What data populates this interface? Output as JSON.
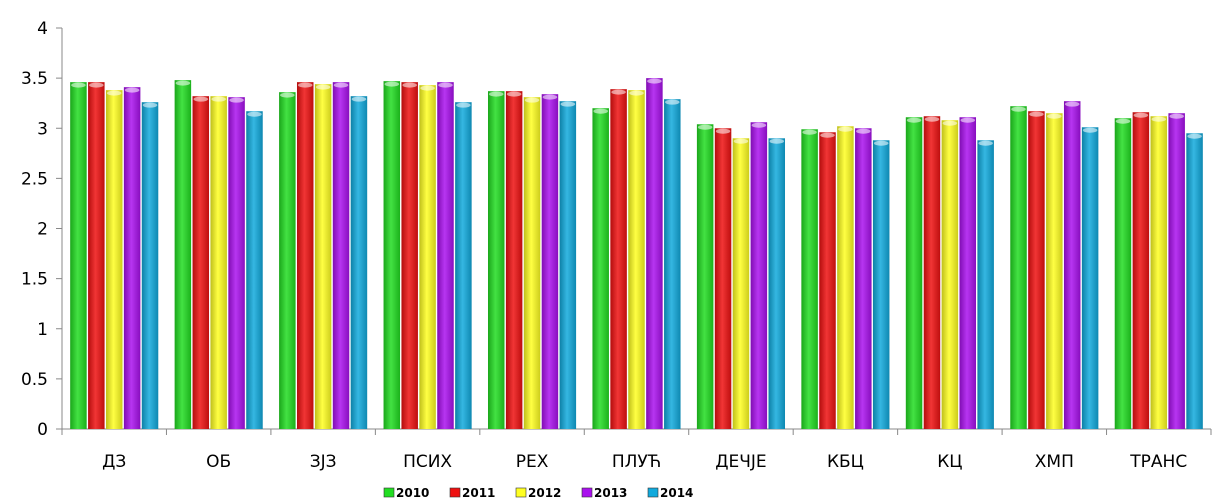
{
  "chart_data": {
    "type": "bar",
    "categories": [
      "ДЗ",
      "ОБ",
      "ЗЈЗ",
      "ПСИХ",
      "РЕХ",
      "ПЛУЋ",
      "ДЕЧЈЕ",
      "КБЦ",
      "КЦ",
      "ХМП",
      "ТРАНС"
    ],
    "series": [
      {
        "name": "2010",
        "color": "#22dd22",
        "values": [
          3.46,
          3.48,
          3.36,
          3.47,
          3.37,
          3.2,
          3.04,
          2.99,
          3.11,
          3.22,
          3.1
        ]
      },
      {
        "name": "2011",
        "color": "#ee1111",
        "values": [
          3.46,
          3.32,
          3.46,
          3.46,
          3.37,
          3.39,
          3.0,
          2.96,
          3.12,
          3.17,
          3.16
        ]
      },
      {
        "name": "2012",
        "color": "#ffff22",
        "values": [
          3.38,
          3.32,
          3.44,
          3.43,
          3.31,
          3.38,
          2.9,
          3.02,
          3.08,
          3.15,
          3.12
        ]
      },
      {
        "name": "2013",
        "color": "#aa11ee",
        "values": [
          3.41,
          3.31,
          3.46,
          3.46,
          3.34,
          3.5,
          3.06,
          3.0,
          3.11,
          3.27,
          3.15
        ]
      },
      {
        "name": "2014",
        "color": "#11aadd",
        "values": [
          3.26,
          3.17,
          3.32,
          3.26,
          3.27,
          3.29,
          2.9,
          2.88,
          2.88,
          3.01,
          2.95
        ]
      }
    ],
    "yticks": [
      "0",
      "0.5",
      "1",
      "1.5",
      "2",
      "2.5",
      "3",
      "3.5",
      "4"
    ],
    "ylim": [
      0,
      4
    ],
    "grid": false,
    "legend_position": "bottom-center"
  }
}
